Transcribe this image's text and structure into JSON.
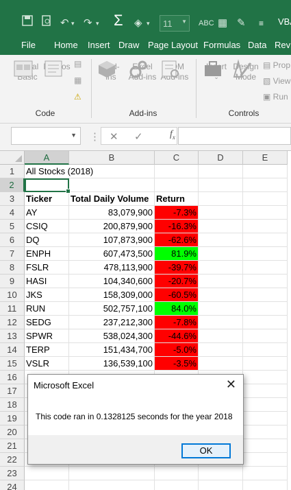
{
  "quick_access": {
    "font_size": "11",
    "vba_label": "VBA"
  },
  "tabs": [
    "File",
    "Home",
    "Insert",
    "Draw",
    "Page Layout",
    "Formulas",
    "Data",
    "Revi"
  ],
  "ribbon": {
    "code_group": {
      "label": "Code",
      "visual_basic": "Visual\nBasic",
      "macros": "Macros"
    },
    "addins_group": {
      "label": "Add-ins",
      "addins": "Add-\nins",
      "excel_addins": "Excel\nAdd-ins",
      "com_addins": "COM\nAdd-ins"
    },
    "controls_group": {
      "label": "Controls",
      "insert": "Insert",
      "design_mode": "Design\nMode",
      "properties": "Prop",
      "view_code": "View",
      "run": "Run"
    }
  },
  "formula_bar": {
    "name_box": "",
    "formula": ""
  },
  "columns": [
    "A",
    "B",
    "C",
    "D",
    "E"
  ],
  "rows": [
    "1",
    "2",
    "3",
    "4",
    "5",
    "6",
    "7",
    "8",
    "9",
    "10",
    "11",
    "12",
    "13",
    "14",
    "15",
    "16",
    "17",
    "18",
    "19",
    "20",
    "21",
    "22",
    "23",
    "24"
  ],
  "sheet": {
    "title": "All Stocks (2018)",
    "headers": {
      "ticker": "Ticker",
      "volume": "Total Daily Volume",
      "return": "Return"
    },
    "data": [
      {
        "ticker": "AY",
        "volume": "83,079,900",
        "return": "-7.3%",
        "status": "negative"
      },
      {
        "ticker": "CSIQ",
        "volume": "200,879,900",
        "return": "-16.3%",
        "status": "negative"
      },
      {
        "ticker": "DQ",
        "volume": "107,873,900",
        "return": "-62.6%",
        "status": "negative"
      },
      {
        "ticker": "ENPH",
        "volume": "607,473,500",
        "return": "81.9%",
        "status": "positive"
      },
      {
        "ticker": "FSLR",
        "volume": "478,113,900",
        "return": "-39.7%",
        "status": "negative"
      },
      {
        "ticker": "HASI",
        "volume": "104,340,600",
        "return": "-20.7%",
        "status": "negative"
      },
      {
        "ticker": "JKS",
        "volume": "158,309,000",
        "return": "-60.5%",
        "status": "negative"
      },
      {
        "ticker": "RUN",
        "volume": "502,757,100",
        "return": "84.0%",
        "status": "positive"
      },
      {
        "ticker": "SEDG",
        "volume": "237,212,300",
        "return": "-7.8%",
        "status": "negative"
      },
      {
        "ticker": "SPWR",
        "volume": "538,024,300",
        "return": "-44.6%",
        "status": "negative"
      },
      {
        "ticker": "TERP",
        "volume": "151,434,700",
        "return": "-5.0%",
        "status": "negative"
      },
      {
        "ticker": "VSLR",
        "volume": "136,539,100",
        "return": "-3.5%",
        "status": "negative"
      }
    ]
  },
  "colors": {
    "excel_green": "#217346",
    "negative": "#ff0000",
    "positive": "#00ff00"
  },
  "dialog": {
    "title": "Microsoft Excel",
    "message": "This code ran in 0.1328125 seconds for the year 2018",
    "ok_label": "OK"
  }
}
